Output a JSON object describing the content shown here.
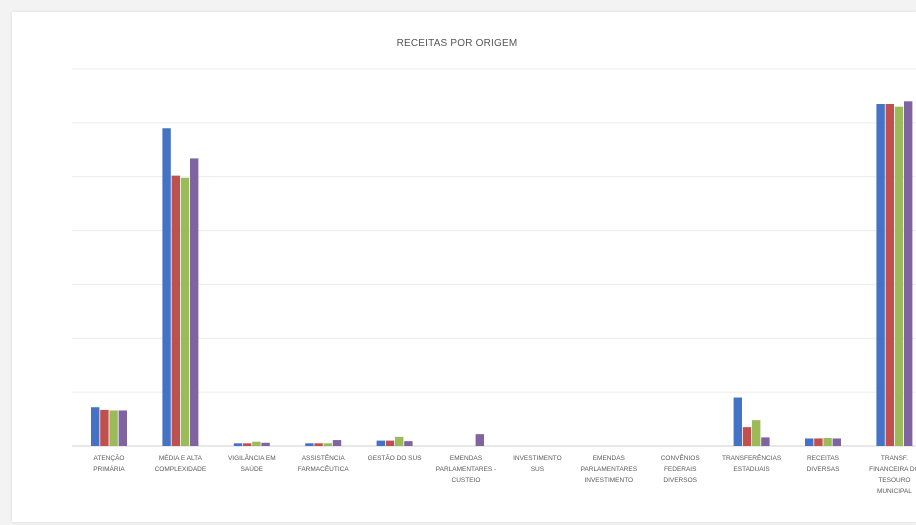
{
  "chart_data": {
    "type": "bar",
    "title": "RECEITAS POR ORIGEM",
    "xlabel": "",
    "ylabel": "",
    "ylim": [
      0,
      7
    ],
    "grid": true,
    "legend": "none",
    "categories": [
      [
        "ATENÇÃO",
        "PRIMÁRIA"
      ],
      [
        "MÉDIA E ALTA",
        "COMPLEXIDADE"
      ],
      [
        "VIGILÂNCIA EM",
        "SAÚDE"
      ],
      [
        "ASSISTÊNCIA",
        "FARMACÊUTICA"
      ],
      [
        "GESTÃO DO SUS"
      ],
      [
        "EMENDAS",
        "PARLAMENTARES -",
        "CUSTEIO"
      ],
      [
        "INVESTIMENTO",
        "SUS"
      ],
      [
        "EMENDAS",
        "PARLAMENTARES",
        "INVESTIMENTO"
      ],
      [
        "CONVÊNIOS",
        "FEDERAIS",
        "DIVERSOS"
      ],
      [
        "TRANSFERÊNCIAS",
        "ESTADUAIS"
      ],
      [
        "RECEITAS",
        "DIVERSAS"
      ],
      [
        "TRANSF.",
        "FINANCEIRA DO",
        "TESOURO",
        "MUNICIPAL"
      ]
    ],
    "series": [
      {
        "color": "#4472C4",
        "values": [
          0.72,
          5.9,
          0.05,
          0.05,
          0.1,
          0.0,
          0.0,
          0.0,
          0.0,
          0.9,
          0.14,
          6.35
        ]
      },
      {
        "color": "#C0504D",
        "values": [
          0.67,
          5.02,
          0.05,
          0.05,
          0.1,
          0.0,
          0.0,
          0.0,
          0.0,
          0.35,
          0.14,
          6.35
        ]
      },
      {
        "color": "#9BBB59",
        "values": [
          0.66,
          4.98,
          0.08,
          0.05,
          0.17,
          0.0,
          0.0,
          0.0,
          0.0,
          0.48,
          0.15,
          6.3
        ]
      },
      {
        "color": "#8064A2",
        "values": [
          0.66,
          5.34,
          0.06,
          0.11,
          0.09,
          0.22,
          0.0,
          0.0,
          0.0,
          0.16,
          0.14,
          6.4
        ]
      }
    ]
  }
}
